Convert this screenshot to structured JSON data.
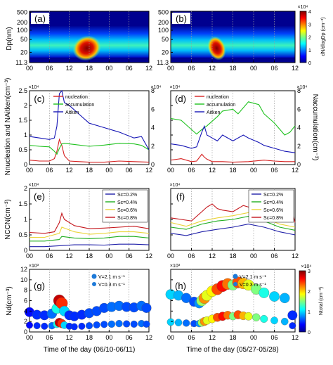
{
  "figure": {
    "x_ticks": [
      "00",
      "06",
      "12",
      "18",
      "00",
      "06",
      "12"
    ],
    "xlabel_left": "Time of the day  (06/10-06/11)",
    "xlabel_right": "Time of the day  (05/27-05/28)"
  },
  "colors": {
    "nucleation": "#d62020",
    "accumulation": "#1fc21f",
    "aitken": "#1515b5",
    "sc02": "#1f1fa8",
    "sc04": "#1fae1f",
    "sc06": "#ead43a",
    "sc08": "#c4161c"
  },
  "chart_data": [
    {
      "panel": "(a)",
      "type": "heatmap",
      "ylabel": "Dp(nm)",
      "y_ticks": [
        "500",
        "200",
        "100",
        "50",
        "20",
        "11.3"
      ],
      "colorbar": {
        "label": "dN/dlogDp (cm⁻³)",
        "exponent": "×10⁴",
        "ticks": [
          "0",
          "1",
          "2",
          "3",
          "4"
        ],
        "range": [
          0,
          4
        ]
      }
    },
    {
      "panel": "(b)",
      "type": "heatmap",
      "y_ticks": [
        "500",
        "200",
        "100",
        "50",
        "20",
        "11.3"
      ]
    },
    {
      "panel": "(c)",
      "type": "line",
      "ylabel": "Nnucleation and NAitken(cm⁻³)",
      "exponent_left": "×10⁴",
      "exponent_right": "×10⁴",
      "y_ticks_left": [
        "0",
        "0.5",
        "1",
        "1.5",
        "2",
        "2.5"
      ],
      "y_ticks_right": [
        "0",
        "2",
        "4",
        "6",
        "8"
      ],
      "ylim_left": [
        0,
        2.5
      ],
      "ylim_right": [
        0,
        8
      ],
      "legend": [
        "nucleation",
        "accumulation",
        "Aitken"
      ],
      "series": [
        {
          "name": "nucleation",
          "axis": "left",
          "x": [
            0,
            4,
            8,
            10,
            11,
            12,
            13,
            14,
            16,
            20,
            24,
            30,
            36,
            42,
            48
          ],
          "values": [
            0.15,
            0.12,
            0.12,
            0.2,
            0.45,
            0.85,
            0.65,
            0.3,
            0.12,
            0.1,
            0.08,
            0.08,
            0.12,
            0.1,
            0.08
          ]
        },
        {
          "name": "accumulation",
          "axis": "left",
          "x": [
            0,
            4,
            8,
            10,
            11,
            12,
            13,
            14,
            18,
            24,
            30,
            36,
            42,
            45,
            48
          ],
          "values": [
            0.65,
            0.62,
            0.6,
            0.45,
            0.35,
            0.55,
            0.7,
            0.72,
            0.68,
            0.62,
            0.66,
            0.72,
            0.7,
            0.65,
            0.5
          ]
        },
        {
          "name": "Aitken",
          "axis": "left",
          "x": [
            0,
            4,
            8,
            10,
            11,
            12,
            13,
            14,
            16,
            18,
            20,
            24,
            30,
            36,
            42,
            45,
            48
          ],
          "values": [
            0.95,
            0.9,
            0.85,
            0.9,
            1.3,
            2.4,
            2.5,
            2.1,
            2.0,
            1.85,
            1.7,
            1.4,
            1.25,
            1.1,
            0.9,
            0.95,
            0.5
          ]
        }
      ]
    },
    {
      "panel": "(d)",
      "type": "line",
      "ylabel_right": "Naccumulation(cm⁻³)",
      "exponent_left": "×10⁴",
      "exponent_right": "×10⁴",
      "y_ticks_right": [
        "0",
        "2",
        "4",
        "6",
        "8"
      ],
      "ylim_left": [
        0,
        2.5
      ],
      "ylim_right": [
        0,
        8
      ],
      "legend": [
        "nucleation",
        "accumulation",
        "Aitken"
      ],
      "series": [
        {
          "name": "nucleation",
          "axis": "left",
          "x": [
            0,
            4,
            8,
            10,
            12,
            13,
            14,
            16,
            20,
            24,
            30,
            36,
            40,
            44,
            48
          ],
          "values": [
            0.15,
            0.2,
            0.1,
            0.12,
            0.35,
            0.25,
            0.18,
            0.1,
            0.1,
            0.08,
            0.1,
            0.15,
            0.12,
            0.1,
            0.1
          ]
        },
        {
          "name": "accumulation",
          "axis": "right",
          "x": [
            0,
            4,
            8,
            10,
            12,
            14,
            18,
            20,
            24,
            26,
            30,
            34,
            36,
            40,
            44,
            46,
            48
          ],
          "values": [
            5.0,
            4.8,
            3.8,
            3.3,
            3.8,
            4.2,
            5.2,
            5.8,
            6.0,
            5.5,
            6.8,
            6.5,
            5.5,
            4.5,
            3.2,
            3.5,
            4.2
          ]
        },
        {
          "name": "Aitken",
          "axis": "left",
          "x": [
            0,
            4,
            8,
            10,
            12,
            13,
            14,
            16,
            18,
            20,
            24,
            28,
            30,
            34,
            36,
            40,
            44,
            48
          ],
          "values": [
            0.7,
            0.65,
            0.55,
            0.6,
            1.1,
            1.3,
            1.0,
            0.9,
            0.8,
            1.0,
            0.8,
            1.0,
            0.9,
            0.75,
            0.65,
            0.55,
            0.45,
            0.4
          ]
        }
      ]
    },
    {
      "panel": "(e)",
      "type": "line",
      "ylabel": "NCCN(cm⁻³)",
      "exponent_left": "×10⁴",
      "y_ticks_left": [
        "0",
        "0.5",
        "1",
        "1.5",
        "2"
      ],
      "ylim_left": [
        0,
        2
      ],
      "legend": [
        "Sc=0.2%",
        "Sc=0.4%",
        "Sc=0.6%",
        "Sc=0.8%"
      ],
      "series": [
        {
          "name": "Sc=0.2%",
          "x": [
            0,
            6,
            12,
            18,
            24,
            30,
            36,
            42,
            48
          ],
          "values": [
            0.12,
            0.12,
            0.15,
            0.18,
            0.18,
            0.17,
            0.2,
            0.2,
            0.18
          ]
        },
        {
          "name": "Sc=0.4%",
          "x": [
            0,
            6,
            12,
            13,
            18,
            24,
            30,
            36,
            42,
            48
          ],
          "values": [
            0.3,
            0.3,
            0.35,
            0.45,
            0.4,
            0.38,
            0.4,
            0.45,
            0.45,
            0.4
          ]
        },
        {
          "name": "Sc=0.6%",
          "x": [
            0,
            6,
            12,
            13,
            18,
            24,
            30,
            36,
            42,
            48
          ],
          "values": [
            0.42,
            0.42,
            0.55,
            0.75,
            0.6,
            0.52,
            0.55,
            0.6,
            0.6,
            0.55
          ]
        },
        {
          "name": "Sc=0.8%",
          "x": [
            0,
            6,
            10,
            12,
            13,
            14,
            18,
            24,
            30,
            36,
            42,
            48
          ],
          "values": [
            0.58,
            0.55,
            0.6,
            0.9,
            1.2,
            1.0,
            0.8,
            0.7,
            0.72,
            0.75,
            0.78,
            0.7
          ]
        }
      ]
    },
    {
      "panel": "(f)",
      "type": "line",
      "exponent_left": "×10⁴",
      "ylim_left": [
        0,
        2
      ],
      "legend": [
        "Sc=0.2%",
        "Sc=0.4%",
        "Sc=0.6%",
        "Sc=0.8%"
      ],
      "series": [
        {
          "name": "Sc=0.2%",
          "x": [
            0,
            6,
            12,
            18,
            24,
            30,
            36,
            42,
            48
          ],
          "values": [
            0.55,
            0.48,
            0.6,
            0.68,
            0.75,
            0.85,
            0.75,
            0.6,
            0.5
          ]
        },
        {
          "name": "Sc=0.4%",
          "x": [
            0,
            6,
            12,
            18,
            24,
            30,
            36,
            42,
            48
          ],
          "values": [
            0.75,
            0.68,
            0.85,
            0.95,
            1.0,
            1.1,
            0.95,
            0.75,
            0.65
          ]
        },
        {
          "name": "Sc=0.6%",
          "x": [
            0,
            6,
            12,
            18,
            24,
            30,
            36,
            42,
            48
          ],
          "values": [
            0.9,
            0.78,
            0.95,
            1.05,
            1.12,
            1.22,
            1.05,
            0.85,
            0.75
          ]
        },
        {
          "name": "Sc=0.8%",
          "x": [
            0,
            4,
            8,
            12,
            14,
            16,
            18,
            20,
            24,
            28,
            30,
            34,
            38,
            42,
            46,
            48
          ],
          "values": [
            1.05,
            1.0,
            0.95,
            1.25,
            1.4,
            1.5,
            1.35,
            1.3,
            1.25,
            1.45,
            1.4,
            1.3,
            1.15,
            1.0,
            1.5,
            0.9
          ]
        }
      ]
    },
    {
      "panel": "(g)",
      "type": "scatter",
      "ylabel": "Nd(cm⁻³)",
      "exponent_left": "×10³",
      "y_ticks_left": [
        "0",
        "2",
        "4",
        "6",
        "8",
        "10",
        "12"
      ],
      "ylim_left": [
        0,
        12
      ],
      "legend": [
        "V=2.1 m s⁻¹",
        "V=0.3 m s⁻¹"
      ],
      "series": [
        {
          "name": "V=2.1 m s⁻¹",
          "x": [
            0,
            3,
            6,
            9,
            11,
            12,
            13,
            14,
            16,
            18,
            21,
            24,
            27,
            30,
            33,
            36,
            39,
            42,
            45,
            47
          ],
          "values": [
            3.8,
            3.3,
            3.2,
            3.5,
            4.5,
            6.0,
            5.5,
            4.0,
            3.2,
            3.0,
            3.3,
            3.6,
            4.0,
            4.6,
            4.8,
            5.0,
            4.8,
            4.7,
            5.0,
            4.6
          ]
        },
        {
          "name": "V=0.3 m s⁻¹",
          "x": [
            0,
            3,
            6,
            9,
            11,
            12,
            13,
            14,
            16,
            18,
            21,
            24,
            27,
            30,
            33,
            36,
            39,
            42,
            45,
            47
          ],
          "values": [
            1.3,
            1.2,
            1.1,
            1.2,
            1.5,
            1.8,
            1.6,
            1.3,
            1.1,
            1.0,
            1.1,
            1.2,
            1.35,
            1.45,
            1.5,
            1.6,
            1.55,
            1.5,
            1.6,
            1.5
          ]
        }
      ],
      "color_values": [
        0.4,
        0.5,
        0.5,
        0.7,
        1.2,
        2.8,
        2.5,
        1.0,
        0.5,
        0.5,
        0.5,
        0.6,
        0.6,
        0.6,
        0.7,
        0.7,
        0.6,
        0.6,
        0.7,
        0.6
      ]
    },
    {
      "panel": "(h)",
      "type": "scatter",
      "exponent_left": "×10³",
      "ylim_left": [
        0,
        12
      ],
      "legend": [
        "V=2.1 m s⁻¹",
        "V=0.3 m s⁻¹"
      ],
      "colorbar": {
        "label": "Ntotal (cm⁻³)",
        "exponent": "×10⁴",
        "ticks": [
          "0",
          "1",
          "2",
          "3"
        ],
        "range": [
          0,
          3
        ]
      },
      "series": [
        {
          "name": "V=2.1 m s⁻¹",
          "x": [
            0,
            3,
            6,
            9,
            11,
            12,
            13,
            14,
            16,
            18,
            20,
            22,
            24,
            26,
            28,
            30,
            33,
            36,
            40,
            44,
            47
          ],
          "values": [
            7.2,
            7.0,
            6.5,
            5.8,
            5.5,
            6.0,
            6.5,
            7.0,
            7.8,
            8.2,
            8.8,
            9.2,
            9.0,
            9.5,
            9.3,
            9.0,
            8.2,
            7.5,
            6.8,
            6.5,
            3.2
          ]
        },
        {
          "name": "V=0.3 m s⁻¹",
          "x": [
            0,
            3,
            6,
            9,
            11,
            12,
            13,
            14,
            16,
            18,
            20,
            22,
            24,
            26,
            28,
            30,
            33,
            36,
            40,
            44,
            47
          ],
          "values": [
            1.9,
            1.8,
            1.7,
            1.6,
            1.6,
            1.8,
            2.0,
            2.2,
            2.5,
            2.8,
            3.0,
            3.2,
            3.0,
            3.3,
            3.1,
            3.0,
            2.8,
            2.5,
            2.2,
            2.0,
            1.2
          ]
        }
      ],
      "color_values": [
        1.0,
        0.9,
        0.7,
        0.6,
        0.8,
        1.6,
        2.2,
        1.8,
        1.9,
        2.4,
        2.6,
        2.3,
        1.5,
        2.4,
        2.1,
        1.8,
        1.5,
        1.2,
        1.0,
        0.9,
        0.5
      ]
    }
  ]
}
